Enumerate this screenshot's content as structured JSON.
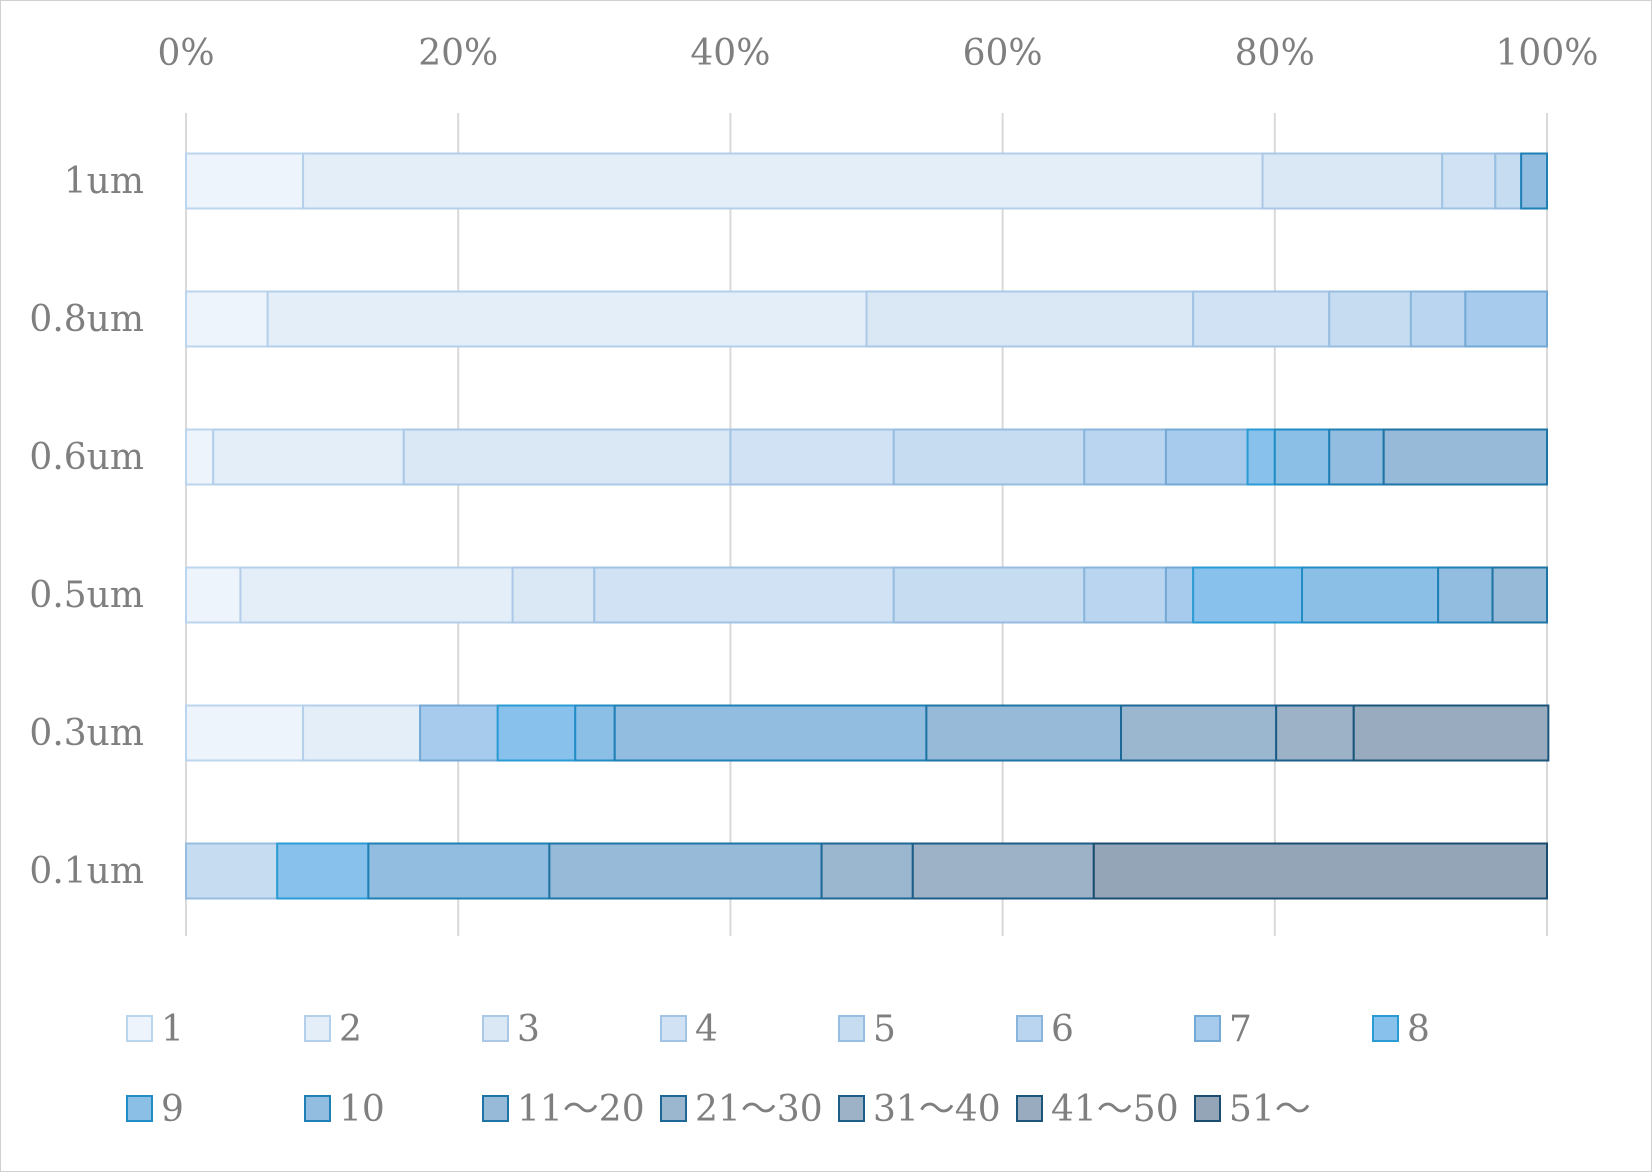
{
  "chart_data": {
    "type": "bar",
    "orientation": "horizontal",
    "stacked": "percent",
    "title": "",
    "xlabel": "",
    "ylabel": "",
    "xlim": [
      0,
      100
    ],
    "x_ticks": [
      "0%",
      "20%",
      "40%",
      "60%",
      "80%",
      "100%"
    ],
    "x_axis_position": "top",
    "grid": true,
    "legend_position": "bottom",
    "categories": [
      "1um",
      "0.8um",
      "0.6um",
      "0.5um",
      "0.3um",
      "0.1um"
    ],
    "series": [
      {
        "name": "1",
        "color": "#eef4fb",
        "border": "#bcd5ee",
        "values": [
          8.6,
          6.0,
          2.0,
          4.0,
          8.6,
          0
        ]
      },
      {
        "name": "2",
        "color": "#e4eef9",
        "border": "#b4cfea",
        "values": [
          70.5,
          44.0,
          14.0,
          20.0,
          8.6,
          0
        ]
      },
      {
        "name": "3",
        "color": "#dae8f6",
        "border": "#abc9e7",
        "values": [
          13.2,
          24.0,
          24.0,
          6.0,
          0,
          0
        ]
      },
      {
        "name": "4",
        "color": "#d0e2f4",
        "border": "#a1c3e4",
        "values": [
          3.9,
          10.0,
          12.0,
          22.0,
          0,
          0
        ]
      },
      {
        "name": "5",
        "color": "#c6dcf1",
        "border": "#97bde1",
        "values": [
          1.9,
          6.0,
          14.0,
          14.0,
          0,
          6.7
        ]
      },
      {
        "name": "6",
        "color": "#b9d5ef",
        "border": "#89b5dc",
        "values": [
          0,
          4.0,
          6.0,
          6.0,
          0,
          0
        ]
      },
      {
        "name": "7",
        "color": "#a6cbec",
        "border": "#74a9d6",
        "values": [
          0,
          6.0,
          6.0,
          2.0,
          5.7,
          0
        ]
      },
      {
        "name": "8",
        "color": "#87c1ec",
        "border": "#2a9bd3",
        "values": [
          0,
          0,
          2.0,
          8.0,
          5.7,
          6.7
        ]
      },
      {
        "name": "9",
        "color": "#8cbfe6",
        "border": "#228cc4",
        "values": [
          0,
          0,
          4.0,
          10.0,
          2.9,
          0
        ]
      },
      {
        "name": "10",
        "color": "#92bde0",
        "border": "#1f80b6",
        "values": [
          1.9,
          0,
          4.0,
          4.0,
          22.9,
          13.3
        ]
      },
      {
        "name": "11～20",
        "color": "#97bad8",
        "border": "#1e74a5",
        "values": [
          0,
          0,
          12.0,
          4.0,
          14.3,
          20.0
        ]
      },
      {
        "name": "21～30",
        "color": "#9bb6cf",
        "border": "#1d6896",
        "values": [
          0,
          0,
          0,
          0,
          11.4,
          6.7
        ]
      },
      {
        "name": "31～40",
        "color": "#9db2c6",
        "border": "#1c5e88",
        "values": [
          0,
          0,
          0,
          0,
          5.7,
          13.3
        ]
      },
      {
        "name": "41～50",
        "color": "#99abbe",
        "border": "#1b557b",
        "values": [
          0,
          0,
          0,
          0,
          14.3,
          0
        ]
      },
      {
        "name": "51～",
        "color": "#93a5b7",
        "border": "#1a4d70",
        "values": [
          0,
          0,
          0,
          0,
          0,
          33.3
        ]
      }
    ]
  }
}
